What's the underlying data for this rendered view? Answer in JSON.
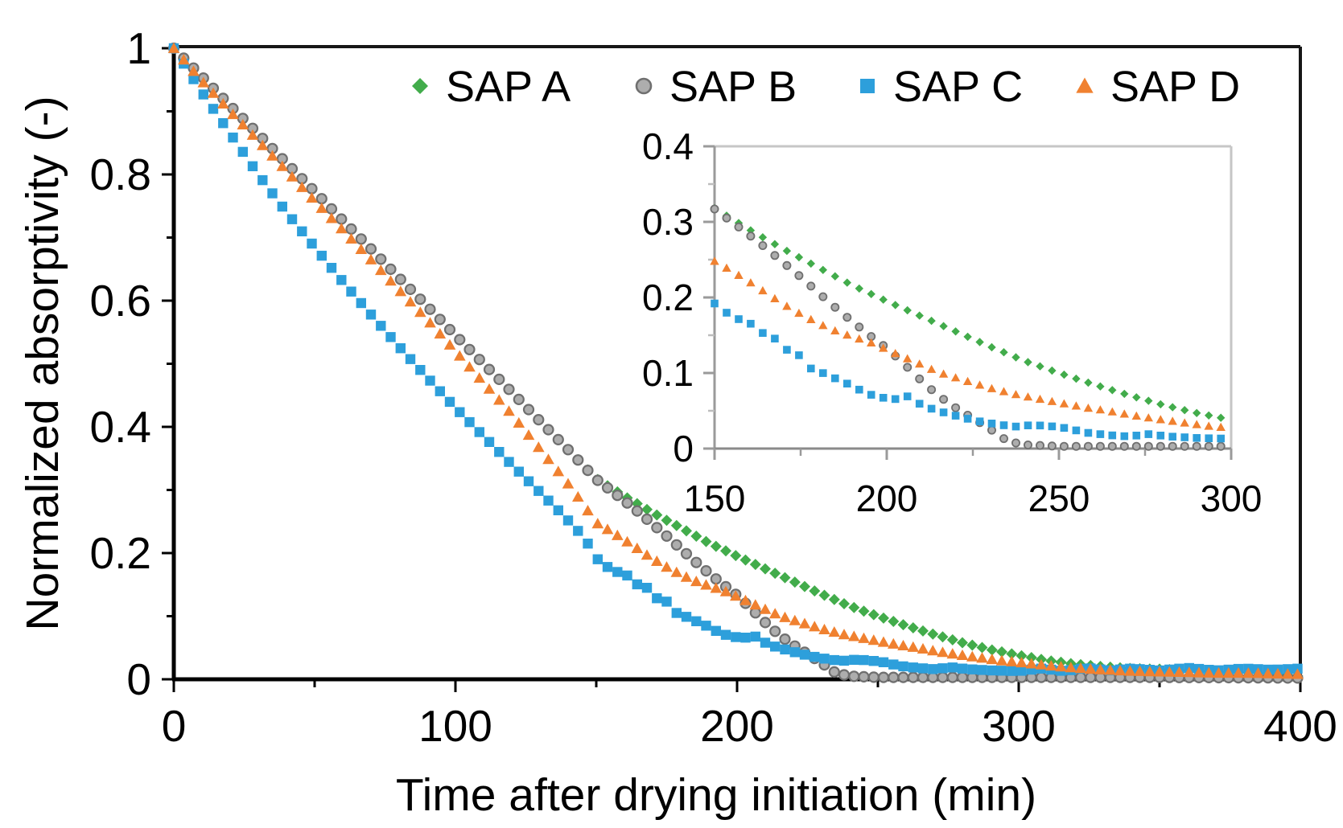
{
  "figure": {
    "kind": "scatter-plot-figure",
    "background": "#ffffff"
  },
  "chart_data": {
    "type": "scatter",
    "title": "",
    "xlabel": "Time after drying initiation (min)",
    "ylabel": "Normalized absorptivity (-)",
    "xlim": [
      0,
      400
    ],
    "ylim": [
      0,
      1
    ],
    "x_major_ticks": [
      0,
      100,
      200,
      300,
      400
    ],
    "x_minor_ticks": [
      50,
      150,
      250,
      350
    ],
    "y_major_ticks": [
      0,
      0.2,
      0.4,
      0.6,
      0.8,
      1
    ],
    "y_minor_ticks": [
      0.1,
      0.3,
      0.5,
      0.7,
      0.9
    ],
    "grid": false,
    "frame": true,
    "legend_position": "top-inside-horizontal",
    "sampling_interval_min": 3.5,
    "axis_color": "#000000",
    "series": [
      {
        "name": "SAP A",
        "marker": "diamond",
        "color": "#42ac4b",
        "points": [
          [
            0,
            1
          ],
          [
            10,
            0.955
          ],
          [
            20,
            0.909
          ],
          [
            30,
            0.864
          ],
          [
            40,
            0.818
          ],
          [
            50,
            0.773
          ],
          [
            60,
            0.727
          ],
          [
            70,
            0.682
          ],
          [
            80,
            0.636
          ],
          [
            90,
            0.591
          ],
          [
            100,
            0.545
          ],
          [
            110,
            0.5
          ],
          [
            120,
            0.455
          ],
          [
            130,
            0.409
          ],
          [
            140,
            0.364
          ],
          [
            150,
            0.318
          ],
          [
            160,
            0.29
          ],
          [
            170,
            0.264
          ],
          [
            180,
            0.24
          ],
          [
            190,
            0.216
          ],
          [
            200,
            0.195
          ],
          [
            210,
            0.175
          ],
          [
            220,
            0.155
          ],
          [
            230,
            0.135
          ],
          [
            240,
            0.116
          ],
          [
            250,
            0.1
          ],
          [
            260,
            0.085
          ],
          [
            270,
            0.071
          ],
          [
            280,
            0.058
          ],
          [
            290,
            0.047
          ],
          [
            300,
            0.038
          ],
          [
            310,
            0.03
          ],
          [
            320,
            0.024
          ],
          [
            330,
            0.02
          ],
          [
            340,
            0.017
          ],
          [
            350,
            0.016
          ],
          [
            360,
            0.014
          ],
          [
            370,
            0.012
          ],
          [
            380,
            0.011
          ],
          [
            390,
            0.009
          ],
          [
            400,
            0.005
          ]
        ]
      },
      {
        "name": "SAP B",
        "marker": "circle",
        "color": "#adadad",
        "stroke": "#6f6f6f",
        "points": [
          [
            0,
            1
          ],
          [
            10,
            0.955
          ],
          [
            20,
            0.909
          ],
          [
            30,
            0.864
          ],
          [
            40,
            0.818
          ],
          [
            50,
            0.773
          ],
          [
            60,
            0.727
          ],
          [
            70,
            0.682
          ],
          [
            80,
            0.636
          ],
          [
            90,
            0.591
          ],
          [
            100,
            0.545
          ],
          [
            110,
            0.5
          ],
          [
            120,
            0.455
          ],
          [
            130,
            0.409
          ],
          [
            140,
            0.364
          ],
          [
            150,
            0.317
          ],
          [
            155,
            0.3
          ],
          [
            160,
            0.283
          ],
          [
            165,
            0.265
          ],
          [
            170,
            0.246
          ],
          [
            175,
            0.227
          ],
          [
            180,
            0.207
          ],
          [
            185,
            0.187
          ],
          [
            190,
            0.168
          ],
          [
            195,
            0.15
          ],
          [
            200,
            0.133
          ],
          [
            205,
            0.112
          ],
          [
            210,
            0.09
          ],
          [
            215,
            0.07
          ],
          [
            220,
            0.054
          ],
          [
            225,
            0.04
          ],
          [
            230,
            0.026
          ],
          [
            235,
            0.01
          ],
          [
            240,
            0.005
          ],
          [
            250,
            0.003
          ],
          [
            275,
            0.003
          ],
          [
            300,
            0.003
          ],
          [
            350,
            0.003
          ],
          [
            400,
            0.002
          ]
        ]
      },
      {
        "name": "SAP C",
        "marker": "square",
        "color": "#2d9fdb",
        "points": [
          [
            0,
            1
          ],
          [
            10,
            0.93
          ],
          [
            20,
            0.865
          ],
          [
            30,
            0.8
          ],
          [
            40,
            0.74
          ],
          [
            50,
            0.685
          ],
          [
            60,
            0.63
          ],
          [
            70,
            0.578
          ],
          [
            80,
            0.527
          ],
          [
            90,
            0.478
          ],
          [
            100,
            0.43
          ],
          [
            110,
            0.385
          ],
          [
            120,
            0.34
          ],
          [
            128,
            0.305
          ],
          [
            136,
            0.27
          ],
          [
            143,
            0.238
          ],
          [
            147,
            0.215
          ],
          [
            150,
            0.192
          ],
          [
            154,
            0.178
          ],
          [
            158,
            0.169
          ],
          [
            162,
            0.163
          ],
          [
            165,
            0.148
          ],
          [
            168,
            0.145
          ],
          [
            172,
            0.126
          ],
          [
            175,
            0.123
          ],
          [
            178,
            0.106
          ],
          [
            182,
            0.099
          ],
          [
            186,
            0.091
          ],
          [
            190,
            0.083
          ],
          [
            194,
            0.073
          ],
          [
            198,
            0.068
          ],
          [
            202,
            0.065
          ],
          [
            206,
            0.069
          ],
          [
            210,
            0.058
          ],
          [
            214,
            0.051
          ],
          [
            218,
            0.046
          ],
          [
            222,
            0.041
          ],
          [
            227,
            0.036
          ],
          [
            232,
            0.032
          ],
          [
            237,
            0.029
          ],
          [
            242,
            0.031
          ],
          [
            247,
            0.03
          ],
          [
            252,
            0.027
          ],
          [
            258,
            0.021
          ],
          [
            264,
            0.018
          ],
          [
            270,
            0.016
          ],
          [
            276,
            0.019
          ],
          [
            282,
            0.016
          ],
          [
            290,
            0.014
          ],
          [
            300,
            0.013
          ],
          [
            308,
            0.017
          ],
          [
            316,
            0.013
          ],
          [
            324,
            0.018
          ],
          [
            332,
            0.014
          ],
          [
            340,
            0.017
          ],
          [
            350,
            0.014
          ],
          [
            360,
            0.018
          ],
          [
            370,
            0.014
          ],
          [
            380,
            0.017
          ],
          [
            390,
            0.015
          ],
          [
            400,
            0.017
          ]
        ]
      },
      {
        "name": "SAP D",
        "marker": "triangle",
        "color": "#f08130",
        "points": [
          [
            0,
            1
          ],
          [
            10,
            0.948
          ],
          [
            20,
            0.9
          ],
          [
            30,
            0.853
          ],
          [
            40,
            0.806
          ],
          [
            50,
            0.758
          ],
          [
            60,
            0.712
          ],
          [
            70,
            0.665
          ],
          [
            80,
            0.617
          ],
          [
            90,
            0.57
          ],
          [
            100,
            0.52
          ],
          [
            110,
            0.47
          ],
          [
            120,
            0.42
          ],
          [
            130,
            0.365
          ],
          [
            140,
            0.31
          ],
          [
            145,
            0.28
          ],
          [
            150,
            0.248
          ],
          [
            155,
            0.235
          ],
          [
            160,
            0.221
          ],
          [
            165,
            0.206
          ],
          [
            170,
            0.191
          ],
          [
            175,
            0.178
          ],
          [
            180,
            0.166
          ],
          [
            185,
            0.156
          ],
          [
            190,
            0.148
          ],
          [
            195,
            0.141
          ],
          [
            200,
            0.131
          ],
          [
            205,
            0.121
          ],
          [
            210,
            0.111
          ],
          [
            215,
            0.101
          ],
          [
            222,
            0.091
          ],
          [
            230,
            0.08
          ],
          [
            238,
            0.071
          ],
          [
            245,
            0.065
          ],
          [
            252,
            0.059
          ],
          [
            258,
            0.054
          ],
          [
            264,
            0.05
          ],
          [
            270,
            0.045
          ],
          [
            277,
            0.04
          ],
          [
            285,
            0.035
          ],
          [
            293,
            0.03
          ],
          [
            300,
            0.027
          ],
          [
            310,
            0.022
          ],
          [
            320,
            0.018
          ],
          [
            330,
            0.015
          ],
          [
            340,
            0.013
          ],
          [
            350,
            0.012
          ],
          [
            360,
            0.011
          ],
          [
            370,
            0.01
          ],
          [
            380,
            0.01
          ],
          [
            390,
            0.009
          ],
          [
            400,
            0.008
          ]
        ]
      }
    ],
    "inset": {
      "xlim": [
        150,
        300
      ],
      "ylim": [
        0,
        0.4
      ],
      "x_major_ticks": [
        150,
        200,
        250,
        300
      ],
      "x_minor_ticks": [
        175,
        225,
        275
      ],
      "y_major_ticks": [
        0,
        0.1,
        0.2,
        0.3,
        0.4
      ],
      "y_minor_ticks": [
        0.05,
        0.15,
        0.25,
        0.35
      ],
      "frame_color": "#c6c6c6",
      "axis_color": "#9a9a9a"
    }
  }
}
